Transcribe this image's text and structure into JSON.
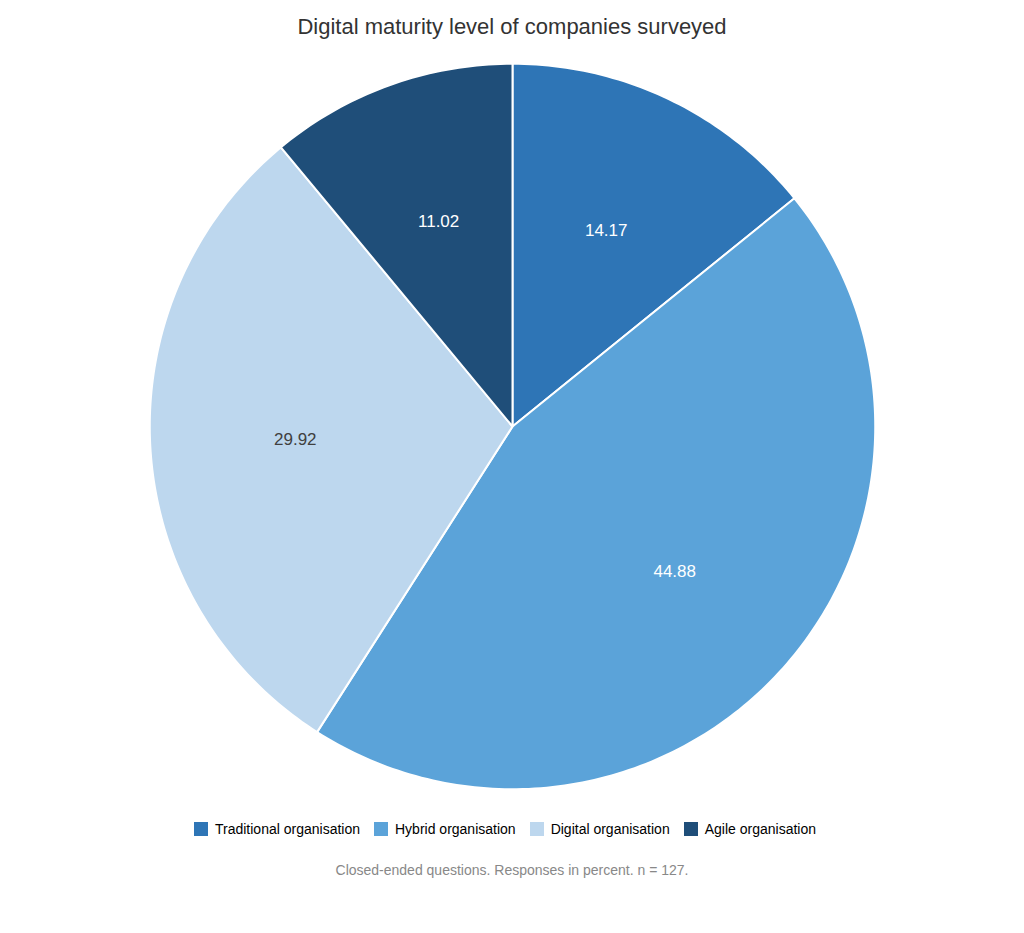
{
  "chart_data": {
    "type": "pie",
    "title": "Digital maturity level of companies surveyed",
    "subtitle": "Closed-ended questions. Responses in percent. n = 127.",
    "categories": [
      "Traditional organisation",
      "Hybrid organisation",
      "Digital organisation",
      "Agile organisation"
    ],
    "values": [
      14.17,
      44.88,
      29.92,
      11.02
    ],
    "colors": [
      "#2E75B6",
      "#5BA3D9",
      "#BDD7EE",
      "#1F4E79"
    ],
    "data_labels": true,
    "legend": "bottom"
  }
}
